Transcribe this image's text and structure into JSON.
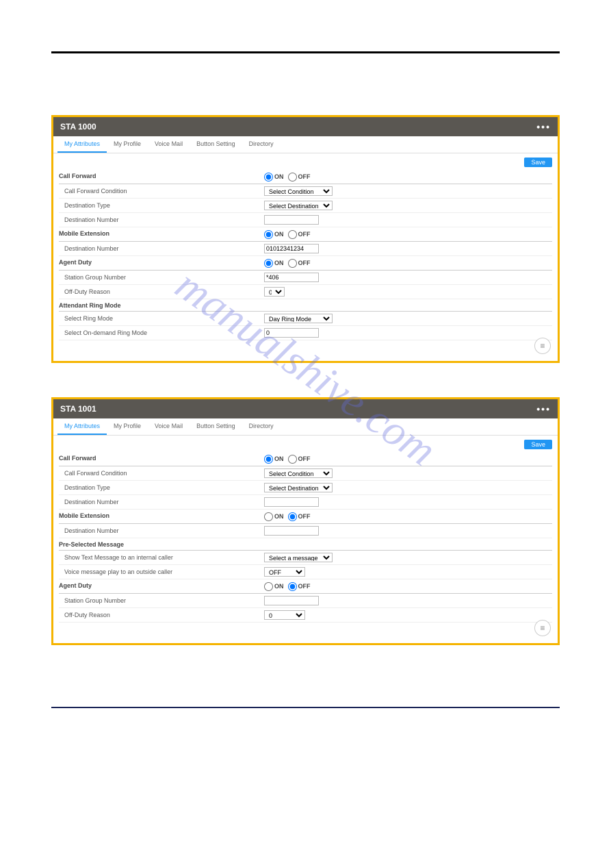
{
  "watermark": "manualshive.com",
  "panels": [
    {
      "title": "STA 1000",
      "tabs": [
        "My Attributes",
        "My Profile",
        "Voice Mail",
        "Button Setting",
        "Directory"
      ],
      "active_tab": 0,
      "save_label": "Save",
      "sections": [
        {
          "head": "Call Forward",
          "head_ctl": {
            "type": "radio",
            "on": "ON",
            "off": "OFF",
            "sel": "on"
          },
          "rows": [
            {
              "lbl": "Call Forward Condition",
              "ctl": {
                "type": "select",
                "value": "Select Condition",
                "cls": "wide"
              }
            },
            {
              "lbl": "Destination Type",
              "ctl": {
                "type": "select",
                "value": "Select Destination Type",
                "cls": "wide"
              }
            },
            {
              "lbl": "Destination Number",
              "ctl": {
                "type": "text",
                "value": "",
                "cls": "sm"
              }
            }
          ]
        },
        {
          "head": "Mobile Extension",
          "head_ctl": {
            "type": "radio",
            "on": "ON",
            "off": "OFF",
            "sel": "on"
          },
          "rows": [
            {
              "lbl": "Destination Number",
              "ctl": {
                "type": "text",
                "value": "01012341234",
                "cls": "sm"
              }
            }
          ]
        },
        {
          "head": "Agent Duty",
          "head_ctl": {
            "type": "radio",
            "on": "ON",
            "off": "OFF",
            "sel": "on"
          },
          "rows": [
            {
              "lbl": "Station Group Number",
              "ctl": {
                "type": "text",
                "value": "*406",
                "cls": "sm"
              }
            },
            {
              "lbl": "Off-Duty Reason",
              "ctl": {
                "type": "select",
                "value": "0",
                "cls": "sm"
              }
            }
          ]
        },
        {
          "head": "Attendant Ring Mode",
          "head_ctl": null,
          "rows": [
            {
              "lbl": "Select Ring Mode",
              "ctl": {
                "type": "select",
                "value": "Day Ring Mode",
                "cls": "wide"
              }
            },
            {
              "lbl": "Select On-demand Ring Mode",
              "ctl": {
                "type": "text",
                "value": "0",
                "cls": "sm"
              }
            }
          ]
        }
      ]
    },
    {
      "title": "STA 1001",
      "tabs": [
        "My Attributes",
        "My Profile",
        "Voice Mail",
        "Button Setting",
        "Directory"
      ],
      "active_tab": 0,
      "save_label": "Save",
      "sections": [
        {
          "head": "Call Forward",
          "head_ctl": {
            "type": "radio",
            "on": "ON",
            "off": "OFF",
            "sel": "on"
          },
          "rows": [
            {
              "lbl": "Call Forward Condition",
              "ctl": {
                "type": "select",
                "value": "Select Condition",
                "cls": "wide"
              }
            },
            {
              "lbl": "Destination Type",
              "ctl": {
                "type": "select",
                "value": "Select Destination Type",
                "cls": "wide"
              }
            },
            {
              "lbl": "Destination Number",
              "ctl": {
                "type": "text",
                "value": "",
                "cls": "sm"
              }
            }
          ]
        },
        {
          "head": "Mobile Extension",
          "head_ctl": {
            "type": "radio",
            "on": "ON",
            "off": "OFF",
            "sel": "off"
          },
          "rows": [
            {
              "lbl": "Destination Number",
              "ctl": {
                "type": "text",
                "value": "",
                "cls": "sm"
              }
            }
          ]
        },
        {
          "head": "Pre-Selected Message",
          "head_ctl": null,
          "rows": [
            {
              "lbl": "Show Text Message to an internal caller",
              "ctl": {
                "type": "select",
                "value": "Select a message",
                "cls": "wide"
              }
            },
            {
              "lbl": "Voice message play to an outside caller",
              "ctl": {
                "type": "select",
                "value": "OFF",
                "cls": "med"
              }
            }
          ]
        },
        {
          "head": "Agent Duty",
          "head_ctl": {
            "type": "radio",
            "on": "ON",
            "off": "OFF",
            "sel": "off"
          },
          "rows": [
            {
              "lbl": "Station Group Number",
              "ctl": {
                "type": "text",
                "value": "",
                "cls": "sm"
              }
            },
            {
              "lbl": "Off-Duty Reason",
              "ctl": {
                "type": "select",
                "value": "0",
                "cls": "med"
              }
            }
          ]
        }
      ]
    }
  ],
  "colors": {
    "accent_border": "#f5b400",
    "header_bg": "#5a5752",
    "active_tab": "#2196f3",
    "save_bg": "#2196f3",
    "bottom_rule": "#1a2456"
  }
}
